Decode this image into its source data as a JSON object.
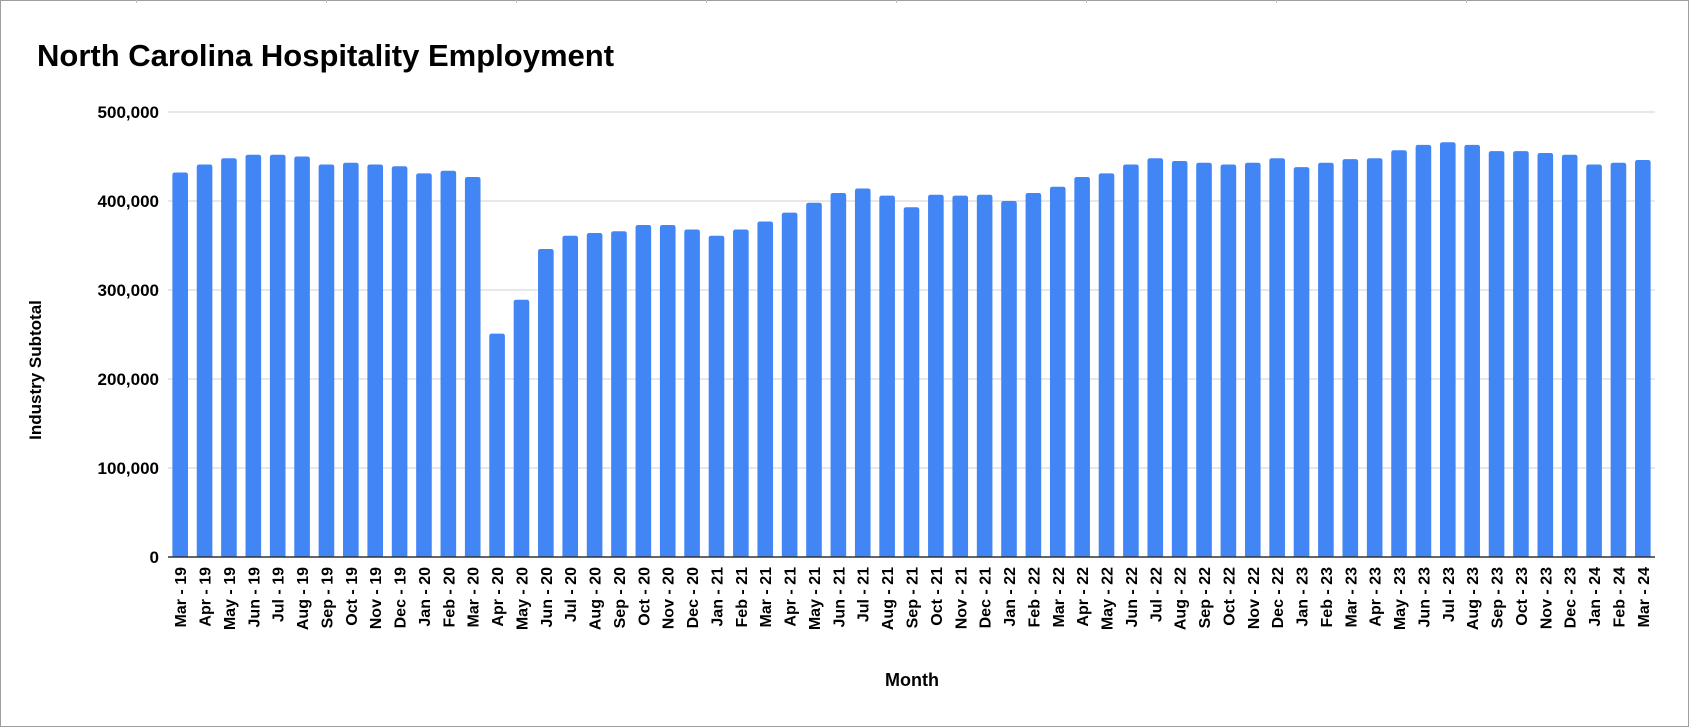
{
  "chart_data": {
    "type": "bar",
    "title": "North Carolina Hospitality Employment",
    "xlabel": "Month",
    "ylabel": "Industry Subtotal",
    "ylim": [
      0,
      500000
    ],
    "yticks": [
      "0",
      "100,000",
      "200,000",
      "300,000",
      "400,000",
      "500,000"
    ],
    "grid": true,
    "legend": "none",
    "bar_color": "#4285f4",
    "categories": [
      "Mar - 19",
      "Apr - 19",
      "May - 19",
      "Jun - 19",
      "Jul - 19",
      "Aug - 19",
      "Sep - 19",
      "Oct - 19",
      "Nov - 19",
      "Dec - 19",
      "Jan - 20",
      "Feb - 20",
      "Mar - 20",
      "Apr - 20",
      "May - 20",
      "Jun - 20",
      "Jul - 20",
      "Aug - 20",
      "Sep - 20",
      "Oct - 20",
      "Nov - 20",
      "Dec - 20",
      "Jan - 21",
      "Feb - 21",
      "Mar - 21",
      "Apr - 21",
      "May - 21",
      "Jun - 21",
      "Jul - 21",
      "Aug - 21",
      "Sep - 21",
      "Oct - 21",
      "Nov - 21",
      "Dec - 21",
      "Jan - 22",
      "Feb - 22",
      "Mar - 22",
      "Apr - 22",
      "May - 22",
      "Jun - 22",
      "Jul - 22",
      "Aug - 22",
      "Sep - 22",
      "Oct - 22",
      "Nov - 22",
      "Dec - 22",
      "Jan - 23",
      "Feb - 23",
      "Mar - 23",
      "Apr - 23",
      "May - 23",
      "Jun - 23",
      "Jul - 23",
      "Aug - 23",
      "Sep - 23",
      "Oct - 23",
      "Nov - 23",
      "Dec - 23",
      "Jan - 24",
      "Feb - 24",
      "Mar - 24"
    ],
    "values": [
      432000,
      441000,
      448000,
      452000,
      452000,
      450000,
      441000,
      443000,
      441000,
      439000,
      431000,
      434000,
      427000,
      251000,
      289000,
      346000,
      361000,
      364000,
      366000,
      373000,
      373000,
      368000,
      361000,
      368000,
      377000,
      387000,
      398000,
      409000,
      414000,
      406000,
      393000,
      407000,
      406000,
      407000,
      400000,
      409000,
      416000,
      427000,
      431000,
      441000,
      448000,
      445000,
      443000,
      441000,
      443000,
      448000,
      438000,
      443000,
      447000,
      448000,
      457000,
      463000,
      466000,
      463000,
      456000,
      456000,
      454000,
      452000,
      441000,
      443000,
      446000
    ]
  }
}
